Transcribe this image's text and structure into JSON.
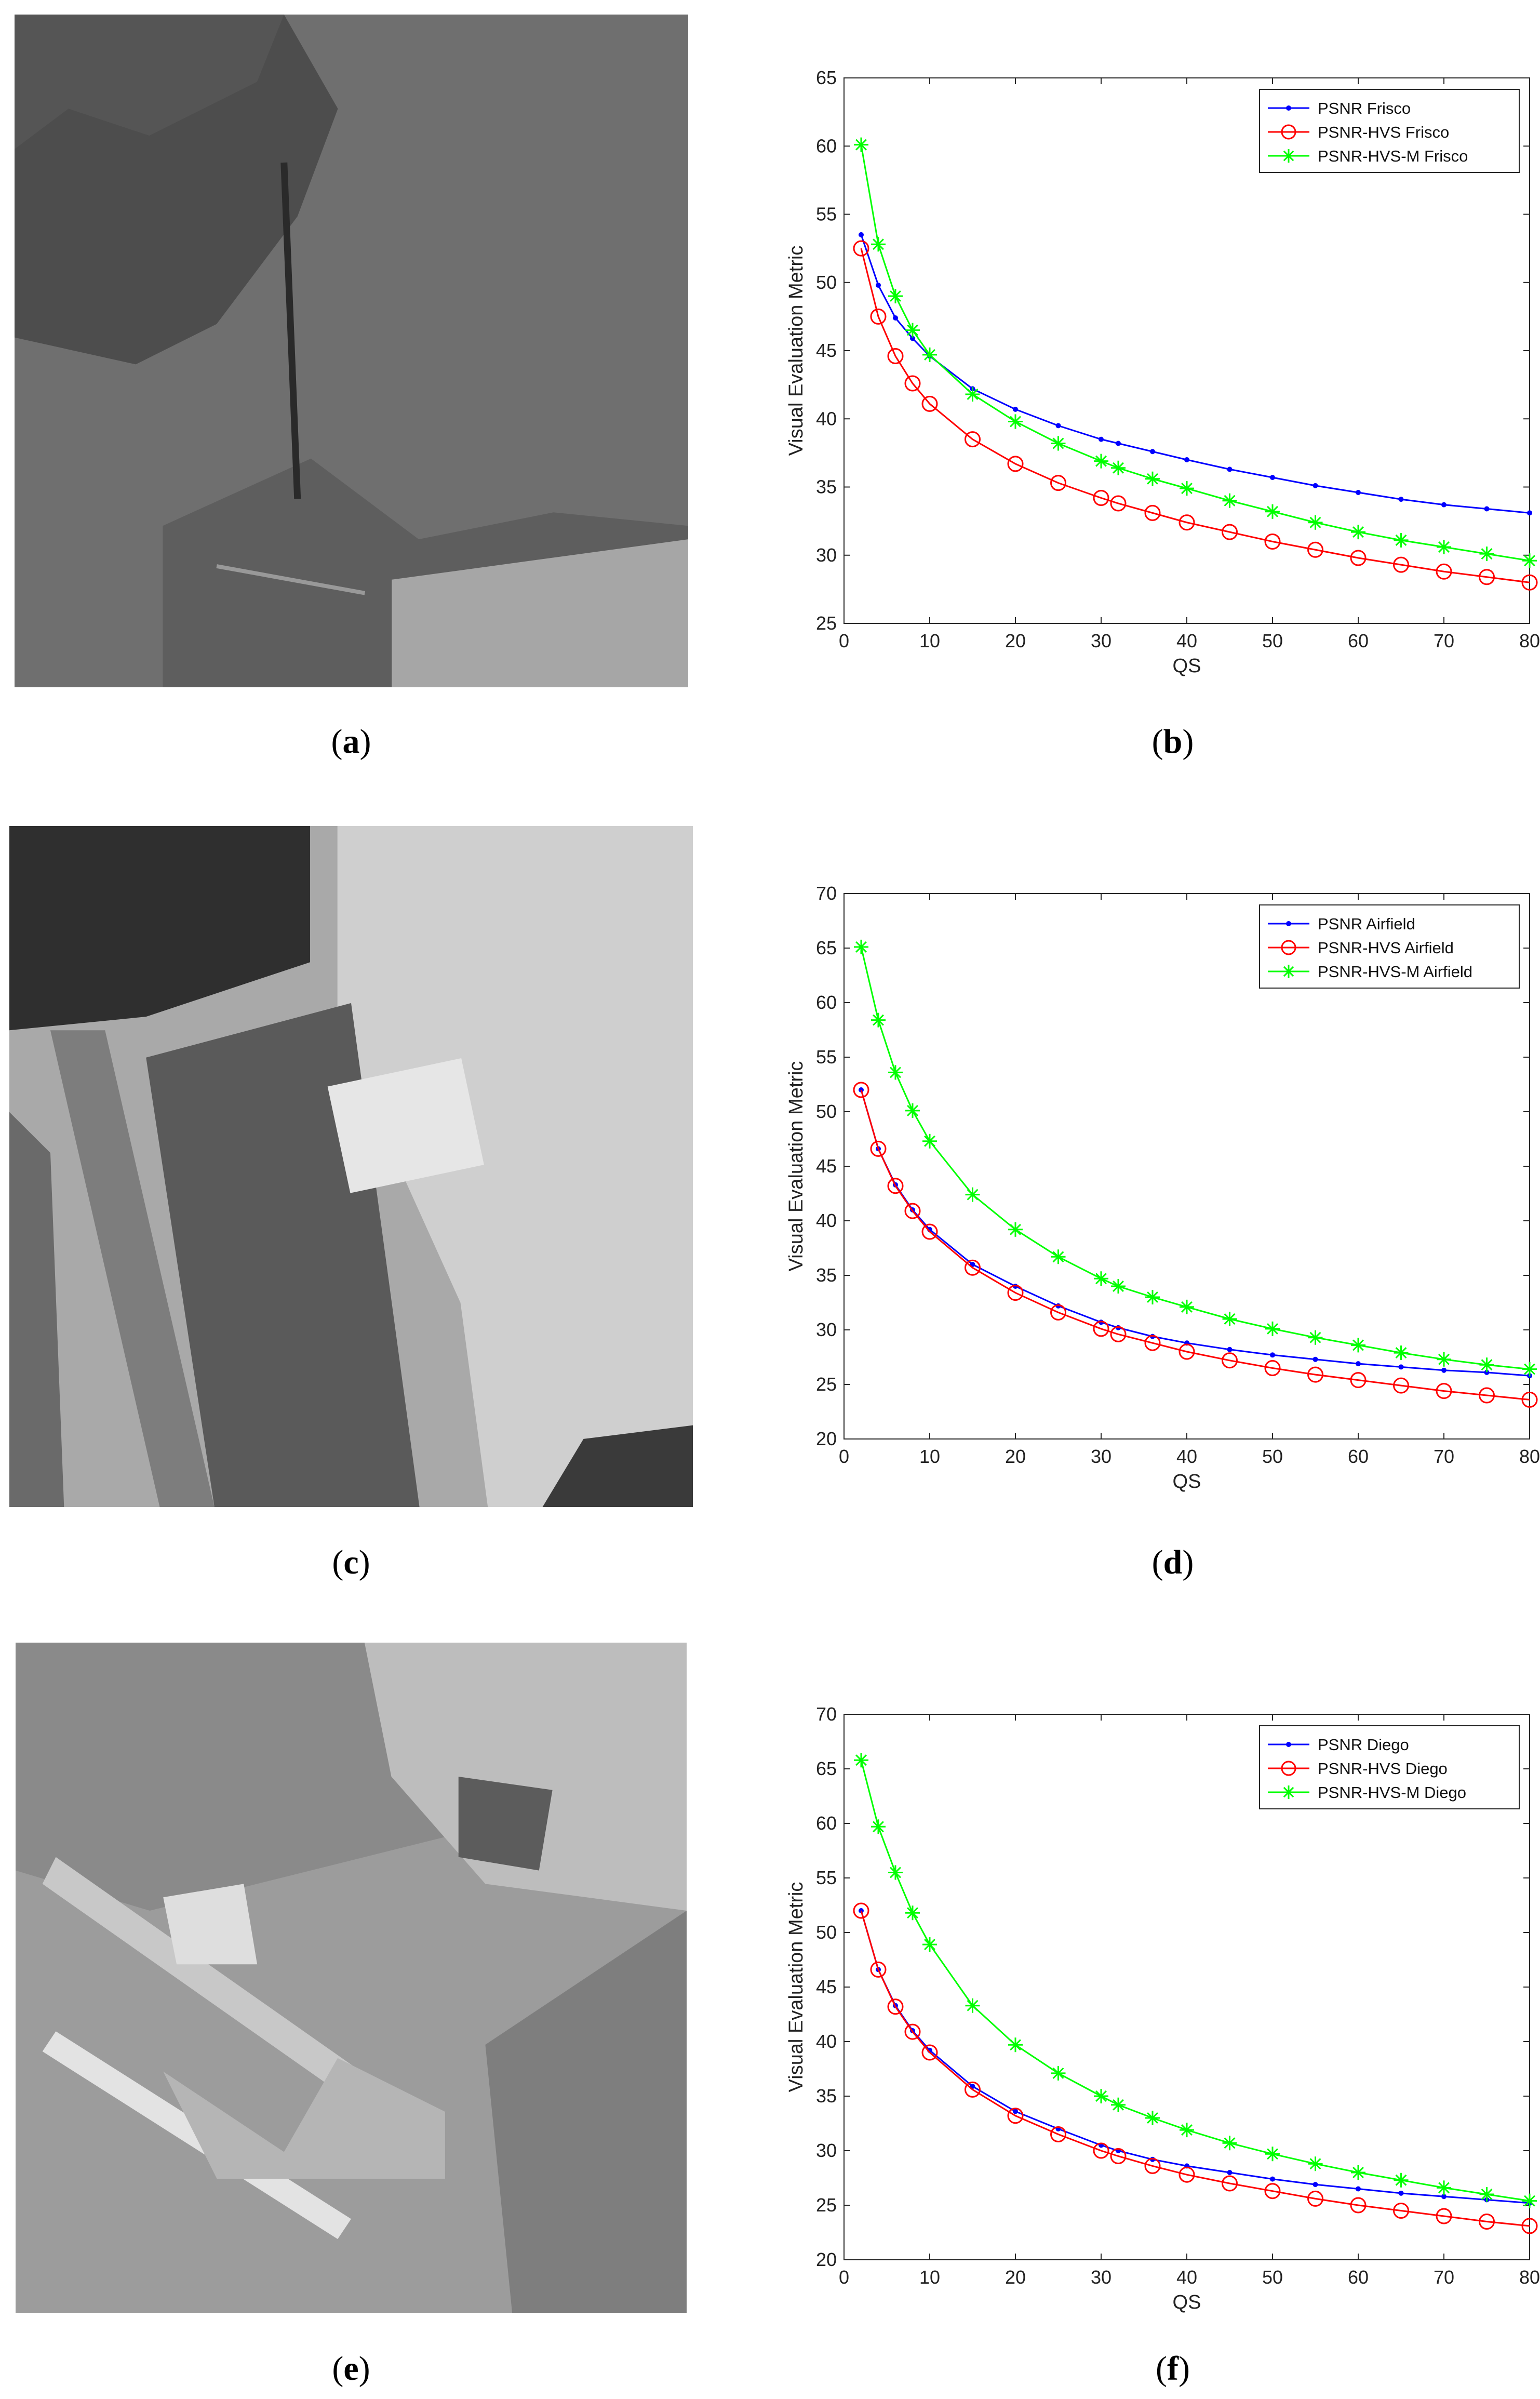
{
  "panels": [
    {
      "label": "a",
      "kind": "photo",
      "scene": "frisco"
    },
    {
      "label": "b",
      "kind": "chart"
    },
    {
      "label": "c",
      "kind": "photo",
      "scene": "airfield"
    },
    {
      "label": "d",
      "kind": "chart"
    },
    {
      "label": "e",
      "kind": "photo",
      "scene": "diego"
    },
    {
      "label": "f",
      "kind": "chart"
    }
  ],
  "colors": {
    "psnr": "#0000ff",
    "psnr_hvs": "#ff0000",
    "psnr_hvs_m": "#00ff00"
  },
  "chart_data": [
    {
      "type": "line",
      "panel": "b",
      "xlabel": "QS",
      "ylabel": "Visual Evaluation Metric",
      "xlim": [
        0,
        80
      ],
      "ylim": [
        25,
        65
      ],
      "xticks": [
        0,
        10,
        20,
        30,
        40,
        50,
        60,
        70,
        80
      ],
      "yticks": [
        25,
        30,
        35,
        40,
        45,
        50,
        55,
        60,
        65
      ],
      "legend_position": "top-right",
      "grid": false,
      "x": [
        2,
        4,
        6,
        8,
        10,
        15,
        20,
        25,
        30,
        32,
        36,
        40,
        45,
        50,
        55,
        60,
        65,
        70,
        75,
        80
      ],
      "series": [
        {
          "name": "PSNR Frisco",
          "marker": "dot",
          "color": "#0000ff",
          "values": [
            53.5,
            49.8,
            47.4,
            45.9,
            44.6,
            42.2,
            40.7,
            39.5,
            38.5,
            38.2,
            37.6,
            37.0,
            36.3,
            35.7,
            35.1,
            34.6,
            34.1,
            33.7,
            33.4,
            33.1
          ]
        },
        {
          "name": "PSNR-HVS Frisco",
          "marker": "circle",
          "color": "#ff0000",
          "values": [
            52.5,
            47.5,
            44.6,
            42.6,
            41.1,
            38.5,
            36.7,
            35.3,
            34.2,
            33.8,
            33.1,
            32.4,
            31.7,
            31.0,
            30.4,
            29.8,
            29.3,
            28.8,
            28.4,
            28.0
          ]
        },
        {
          "name": "PSNR-HVS-M Frisco",
          "marker": "star",
          "color": "#00ff00",
          "values": [
            60.1,
            52.8,
            49.0,
            46.5,
            44.7,
            41.8,
            39.8,
            38.2,
            36.9,
            36.4,
            35.6,
            34.9,
            34.0,
            33.2,
            32.4,
            31.7,
            31.1,
            30.6,
            30.1,
            29.6
          ]
        }
      ]
    },
    {
      "type": "line",
      "panel": "d",
      "xlabel": "QS",
      "ylabel": "Visual Evaluation Metric",
      "xlim": [
        0,
        80
      ],
      "ylim": [
        20,
        70
      ],
      "xticks": [
        0,
        10,
        20,
        30,
        40,
        50,
        60,
        70,
        80
      ],
      "yticks": [
        20,
        25,
        30,
        35,
        40,
        45,
        50,
        55,
        60,
        65,
        70
      ],
      "legend_position": "top-right",
      "grid": false,
      "x": [
        2,
        4,
        6,
        8,
        10,
        15,
        20,
        25,
        30,
        32,
        36,
        40,
        45,
        50,
        55,
        60,
        65,
        70,
        75,
        80
      ],
      "series": [
        {
          "name": "PSNR Airfield",
          "marker": "dot",
          "color": "#0000ff",
          "values": [
            52.0,
            46.6,
            43.3,
            41.0,
            39.2,
            36.0,
            34.0,
            32.2,
            30.7,
            30.2,
            29.4,
            28.8,
            28.2,
            27.7,
            27.3,
            26.9,
            26.6,
            26.3,
            26.1,
            25.8
          ]
        },
        {
          "name": "PSNR-HVS Airfield",
          "marker": "circle",
          "color": "#ff0000",
          "values": [
            52.0,
            46.6,
            43.2,
            40.9,
            39.0,
            35.7,
            33.4,
            31.6,
            30.1,
            29.6,
            28.8,
            28.0,
            27.2,
            26.5,
            25.9,
            25.4,
            24.9,
            24.4,
            24.0,
            23.6
          ]
        },
        {
          "name": "PSNR-HVS-M Airfield",
          "marker": "star",
          "color": "#00ff00",
          "values": [
            65.1,
            58.4,
            53.6,
            50.1,
            47.3,
            42.4,
            39.2,
            36.7,
            34.7,
            34.0,
            33.0,
            32.1,
            31.0,
            30.1,
            29.3,
            28.6,
            27.9,
            27.3,
            26.8,
            26.4
          ]
        }
      ]
    },
    {
      "type": "line",
      "panel": "f",
      "xlabel": "QS",
      "ylabel": "Visual Evaluation Metric",
      "xlim": [
        0,
        80
      ],
      "ylim": [
        20,
        70
      ],
      "xticks": [
        0,
        10,
        20,
        30,
        40,
        50,
        60,
        70,
        80
      ],
      "yticks": [
        20,
        25,
        30,
        35,
        40,
        45,
        50,
        55,
        60,
        65,
        70
      ],
      "legend_position": "top-right",
      "grid": false,
      "x": [
        2,
        4,
        6,
        8,
        10,
        15,
        20,
        25,
        30,
        32,
        36,
        40,
        45,
        50,
        55,
        60,
        65,
        70,
        75,
        80
      ],
      "series": [
        {
          "name": "PSNR Diego",
          "marker": "dot",
          "color": "#0000ff",
          "values": [
            52.0,
            46.6,
            43.3,
            41.0,
            39.2,
            35.9,
            33.6,
            32.0,
            30.5,
            30.0,
            29.2,
            28.6,
            28.0,
            27.4,
            26.9,
            26.5,
            26.1,
            25.8,
            25.5,
            25.2
          ]
        },
        {
          "name": "PSNR-HVS Diego",
          "marker": "circle",
          "color": "#ff0000",
          "values": [
            52.0,
            46.6,
            43.2,
            40.9,
            39.0,
            35.6,
            33.2,
            31.5,
            30.0,
            29.5,
            28.6,
            27.8,
            27.0,
            26.3,
            25.6,
            25.0,
            24.5,
            24.0,
            23.5,
            23.1
          ]
        },
        {
          "name": "PSNR-HVS-M Diego",
          "marker": "star",
          "color": "#00ff00",
          "values": [
            65.8,
            59.7,
            55.5,
            51.8,
            48.9,
            43.3,
            39.7,
            37.1,
            35.0,
            34.2,
            33.0,
            31.9,
            30.7,
            29.7,
            28.8,
            28.0,
            27.3,
            26.6,
            26.0,
            25.4
          ]
        }
      ]
    }
  ]
}
